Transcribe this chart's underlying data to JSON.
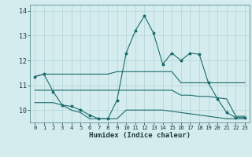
{
  "xlabel": "Humidex (Indice chaleur)",
  "x": [
    0,
    1,
    2,
    3,
    4,
    5,
    6,
    7,
    8,
    9,
    10,
    11,
    12,
    13,
    14,
    15,
    16,
    17,
    18,
    19,
    20,
    21,
    22,
    23
  ],
  "line1": [
    11.35,
    11.45,
    11.45,
    11.45,
    11.45,
    11.45,
    11.45,
    11.45,
    11.45,
    11.55,
    11.55,
    11.55,
    11.55,
    11.55,
    11.55,
    11.55,
    11.1,
    11.1,
    11.1,
    11.1,
    11.1,
    11.1,
    11.1,
    11.1
  ],
  "line2": [
    10.8,
    10.8,
    10.8,
    10.8,
    10.8,
    10.8,
    10.8,
    10.8,
    10.8,
    10.8,
    10.8,
    10.8,
    10.8,
    10.8,
    10.8,
    10.8,
    10.6,
    10.6,
    10.55,
    10.55,
    10.5,
    10.45,
    9.75,
    9.75
  ],
  "line3": [
    11.35,
    11.45,
    10.75,
    10.2,
    10.15,
    10.0,
    9.8,
    9.65,
    9.65,
    10.4,
    12.3,
    13.2,
    13.8,
    13.1,
    11.85,
    12.3,
    12.0,
    12.3,
    12.25,
    11.1,
    10.45,
    9.9,
    9.7,
    9.7
  ],
  "line4": [
    10.3,
    10.3,
    10.3,
    10.2,
    10.0,
    9.9,
    9.65,
    9.65,
    9.65,
    9.65,
    10.0,
    10.0,
    10.0,
    10.0,
    10.0,
    9.95,
    9.9,
    9.85,
    9.8,
    9.75,
    9.7,
    9.65,
    9.65,
    9.65
  ],
  "bg_color": "#d4ecee",
  "line_color": "#1a6b6b",
  "grid_color": "#aacccf",
  "ylim": [
    9.5,
    14.25
  ],
  "yticks": [
    10,
    11,
    12,
    13,
    14
  ],
  "marker_indices3": [
    0,
    1,
    2,
    3,
    4,
    5,
    6,
    7,
    8,
    9,
    10,
    11,
    12,
    13,
    14,
    15,
    16,
    17,
    18,
    19,
    20,
    21,
    22,
    23
  ]
}
